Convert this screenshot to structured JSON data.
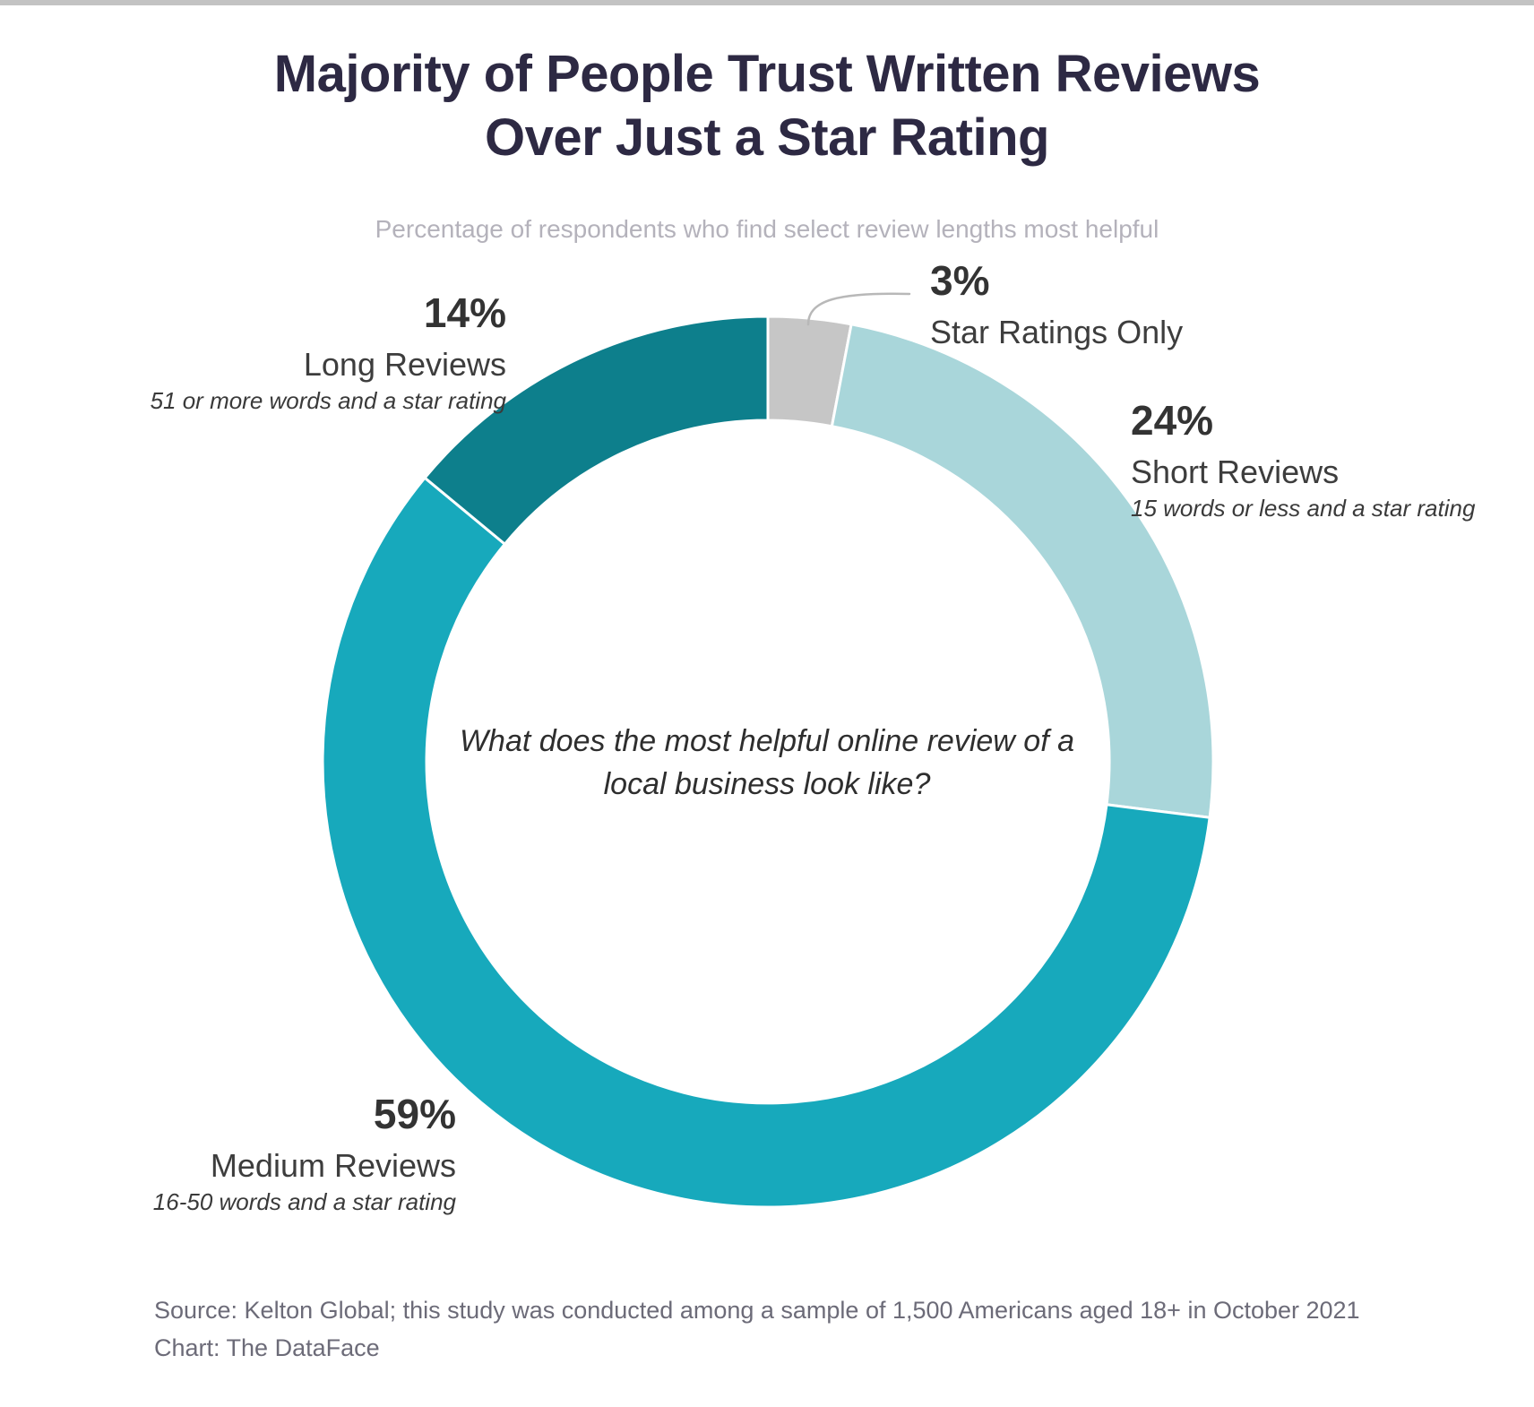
{
  "page": {
    "topbar_color": "#c3c3c3",
    "background_color": "#ffffff"
  },
  "header": {
    "title_line1": "Majority of People Trust Written Reviews",
    "title_line2": "Over Just a Star Rating",
    "subtitle": "Percentage of respondents who find select review lengths most helpful"
  },
  "chart_data": {
    "type": "pie",
    "variant": "donut",
    "title": "Majority of People Trust Written Reviews Over Just a Star Rating",
    "subtitle": "Percentage of respondents who find select review lengths most helpful",
    "center_question": "What does the most helpful online review of a local business look like?",
    "start_angle_deg": 0,
    "direction": "clockwise",
    "inner_radius_ratio": 0.767,
    "separator_color": "#ffffff",
    "leader_line_color": "#b8b8b8",
    "segments": [
      {
        "label": "Star Ratings Only",
        "value": 3,
        "display": "3%",
        "description": "",
        "color": "#c6c6c6"
      },
      {
        "label": "Short Reviews",
        "value": 24,
        "display": "24%",
        "description": "15 words or less and a star rating",
        "color": "#a9d6da"
      },
      {
        "label": "Medium Reviews",
        "value": 59,
        "display": "59%",
        "description": "16-50 words and a star rating",
        "color": "#17a9bc"
      },
      {
        "label": "Long Reviews",
        "value": 14,
        "display": "14%",
        "description": "51 or more words and a star rating",
        "color": "#0d7f8c"
      }
    ]
  },
  "footer": {
    "source": "Source: Kelton Global; this study was conducted among a sample of 1,500 Americans aged 18+ in October 2021",
    "credit": "Chart: The DataFace"
  }
}
